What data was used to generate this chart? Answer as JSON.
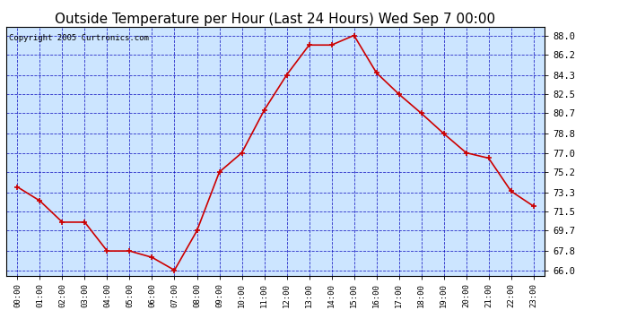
{
  "title": "Outside Temperature per Hour (Last 24 Hours) Wed Sep 7 00:00",
  "copyright": "Copyright 2005 Curtronics.com",
  "hours": [
    "00:00",
    "01:00",
    "02:00",
    "03:00",
    "04:00",
    "05:00",
    "06:00",
    "07:00",
    "08:00",
    "09:00",
    "10:00",
    "11:00",
    "12:00",
    "13:00",
    "14:00",
    "15:00",
    "16:00",
    "17:00",
    "18:00",
    "19:00",
    "20:00",
    "21:00",
    "22:00",
    "23:00"
  ],
  "values": [
    73.8,
    72.5,
    70.5,
    70.5,
    67.8,
    67.8,
    67.2,
    66.0,
    69.7,
    75.2,
    77.0,
    81.0,
    84.3,
    87.1,
    87.1,
    88.0,
    84.5,
    82.5,
    80.7,
    78.8,
    77.0,
    76.5,
    73.4,
    72.0
  ],
  "line_color": "#cc0000",
  "marker_color": "#cc0000",
  "bg_color": "#cce5ff",
  "grid_color": "#0000bb",
  "title_fontsize": 11,
  "ylabel_ticks": [
    66.0,
    67.8,
    69.7,
    71.5,
    73.3,
    75.2,
    77.0,
    78.8,
    80.7,
    82.5,
    84.3,
    86.2,
    88.0
  ],
  "ylim": [
    65.5,
    88.8
  ],
  "figsize": [
    6.9,
    3.75
  ],
  "dpi": 100
}
